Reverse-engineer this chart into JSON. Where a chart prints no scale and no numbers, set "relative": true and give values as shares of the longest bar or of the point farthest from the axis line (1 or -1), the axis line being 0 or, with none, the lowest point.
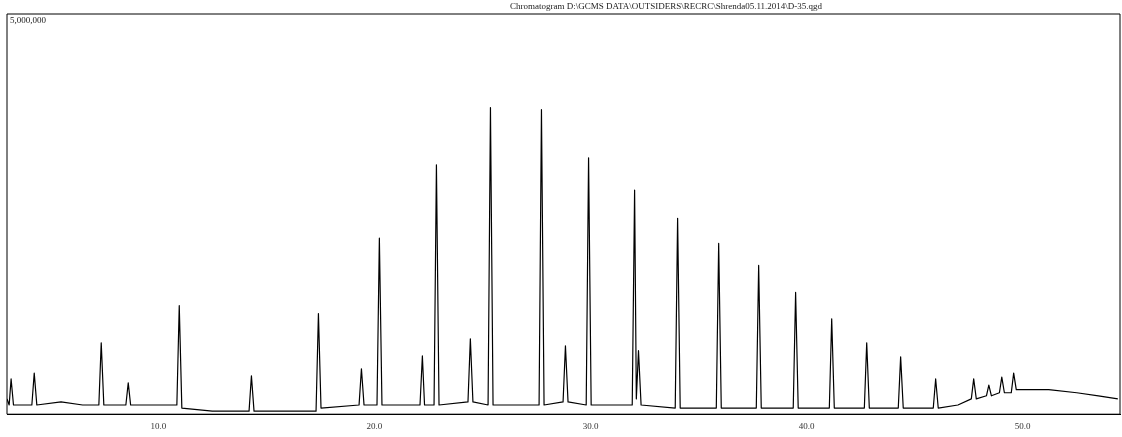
{
  "chart_data": {
    "type": "line",
    "title": "Chromatogram D:\\GCMS DATA\\OUTSIDERS\\RECRC\\Shrenda05.11.2014\\D-35.qgd",
    "annotations": [
      "5,000,000"
    ],
    "relative": true,
    "marker": "none",
    "line_style": "solid",
    "grid": false,
    "legend": false,
    "xlim": [
      3,
      54.5
    ],
    "xticks": [
      {
        "value": 10,
        "label": "10.0"
      },
      {
        "value": 20,
        "label": "20.0"
      },
      {
        "value": 30,
        "label": "30.0"
      },
      {
        "value": 40,
        "label": "40.0"
      },
      {
        "value": 50,
        "label": "50.0"
      }
    ],
    "series": [
      {
        "color": "#000000",
        "x": [
          3.0,
          3.1,
          3.19,
          3.3,
          4.15,
          4.26,
          4.38,
          5.5,
          6.5,
          7.25,
          7.36,
          7.48,
          8.5,
          8.61,
          8.72,
          10.86,
          10.97,
          11.09,
          12.5,
          14.2,
          14.31,
          14.43,
          16.0,
          17.3,
          17.41,
          17.53,
          19.29,
          19.4,
          19.52,
          20.12,
          20.23,
          20.35,
          22.11,
          22.22,
          22.32,
          22.76,
          22.87,
          22.99,
          24.33,
          24.44,
          24.56,
          25.26,
          25.37,
          25.49,
          27.62,
          27.73,
          27.85,
          28.73,
          28.84,
          28.96,
          29.8,
          29.91,
          30.03,
          31.93,
          32.04,
          32.12,
          32.22,
          32.34,
          33.92,
          34.03,
          34.15,
          35.82,
          35.93,
          36.05,
          37.67,
          37.78,
          37.9,
          39.38,
          39.49,
          39.61,
          41.05,
          41.16,
          41.28,
          42.67,
          42.78,
          42.9,
          44.24,
          44.35,
          44.47,
          45.86,
          45.97,
          46.09,
          47.0,
          47.62,
          47.73,
          47.85,
          48.32,
          48.43,
          48.55,
          48.92,
          49.03,
          49.15,
          49.47,
          49.58,
          49.7,
          50.5,
          51.2,
          52.5,
          53.5,
          54.4
        ],
        "values": [
          0.05,
          0.03,
          0.115,
          0.03,
          0.03,
          0.134,
          0.03,
          0.04,
          0.03,
          0.03,
          0.233,
          0.03,
          0.03,
          0.102,
          0.03,
          0.03,
          0.354,
          0.02,
          0.01,
          0.01,
          0.125,
          0.01,
          0.01,
          0.01,
          0.328,
          0.02,
          0.03,
          0.148,
          0.03,
          0.03,
          0.574,
          0.03,
          0.03,
          0.19,
          0.03,
          0.03,
          0.813,
          0.03,
          0.04,
          0.246,
          0.04,
          0.03,
          1,
          0.03,
          0.03,
          0.993,
          0.03,
          0.04,
          0.223,
          0.04,
          0.03,
          0.836,
          0.03,
          0.03,
          0.731,
          0.05,
          0.207,
          0.03,
          0.02,
          0.639,
          0.02,
          0.02,
          0.557,
          0.02,
          0.02,
          0.485,
          0.02,
          0.02,
          0.397,
          0.02,
          0.02,
          0.311,
          0.02,
          0.02,
          0.233,
          0.02,
          0.02,
          0.187,
          0.02,
          0.02,
          0.115,
          0.02,
          0.03,
          0.05,
          0.115,
          0.05,
          0.06,
          0.095,
          0.06,
          0.07,
          0.121,
          0.07,
          0.07,
          0.134,
          0.08,
          0.08,
          0.08,
          0.07,
          0.06,
          0.05
        ]
      }
    ]
  }
}
